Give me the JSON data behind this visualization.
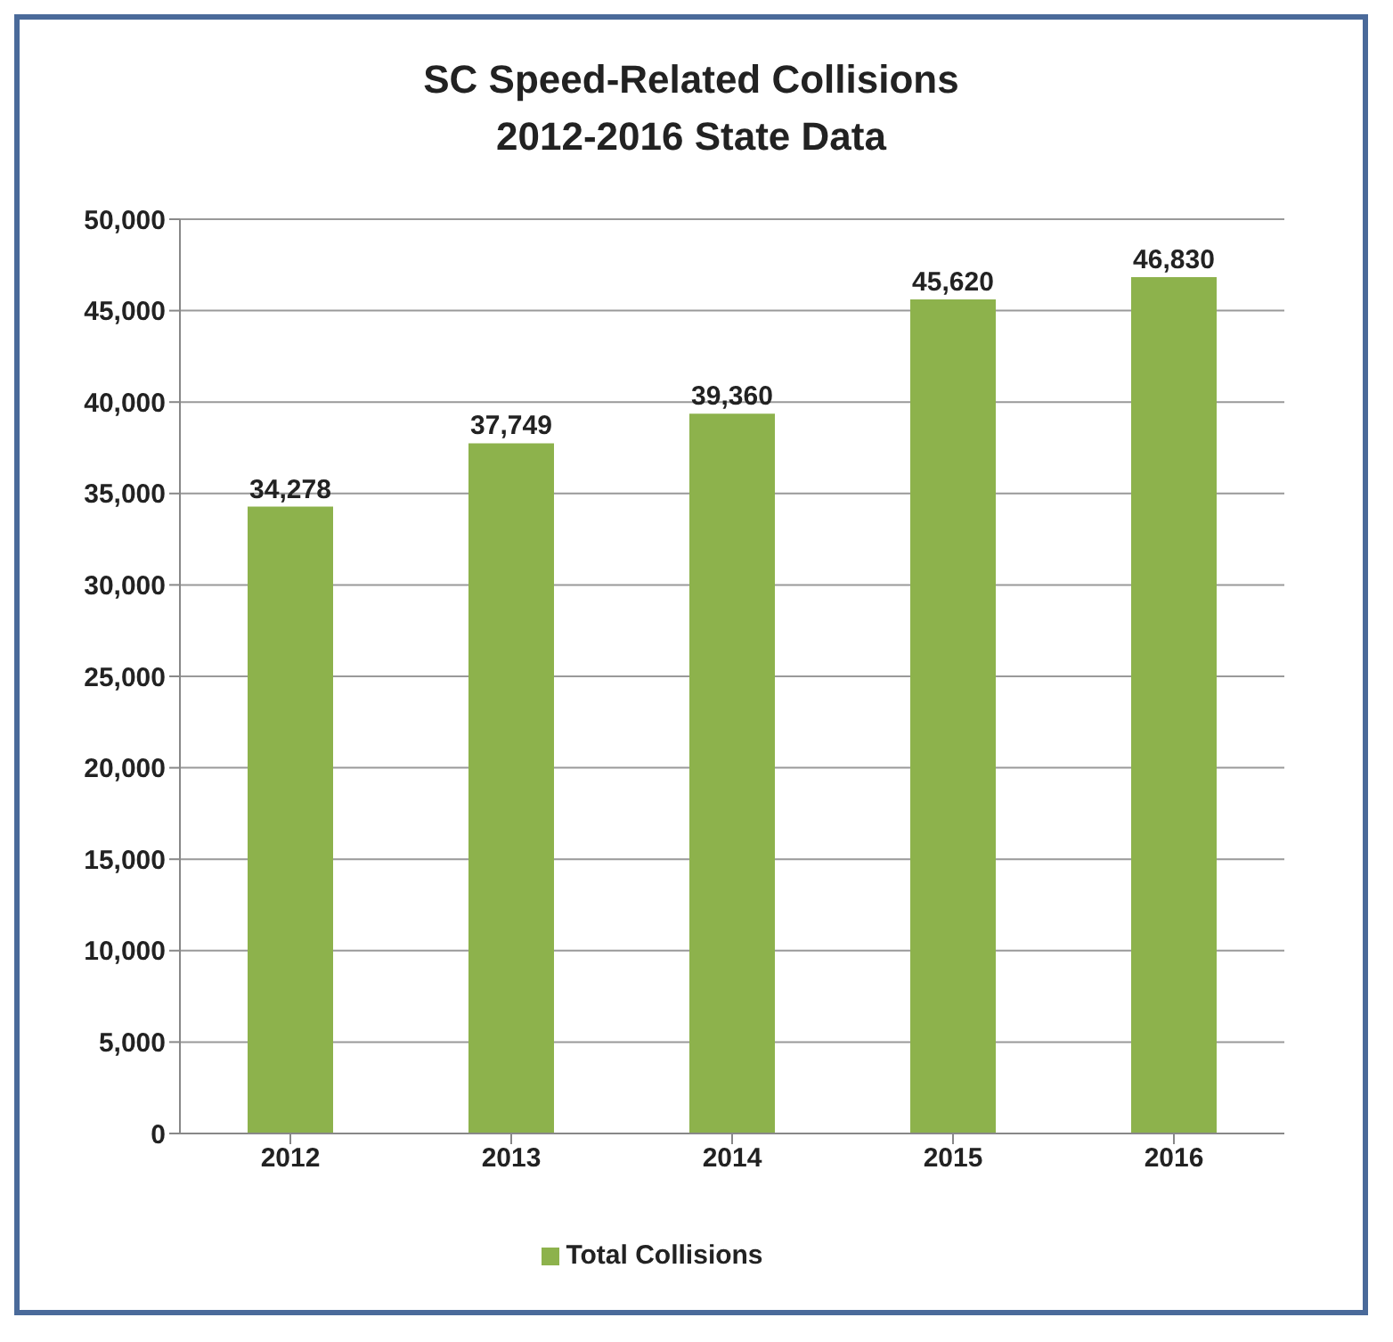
{
  "chart_data": {
    "type": "bar",
    "title": "SC Speed-Related Collisions",
    "subtitle": "2012-2016 State Data",
    "categories": [
      "2012",
      "2013",
      "2014",
      "2015",
      "2016"
    ],
    "series": [
      {
        "name": "Total Collisions",
        "color": "#8db24c",
        "values": [
          34278,
          37749,
          39360,
          45620,
          46830
        ],
        "value_labels": [
          "34,278",
          "37,749",
          "39,360",
          "45,620",
          "46,830"
        ]
      }
    ],
    "ylim": [
      0,
      50000
    ],
    "yticks": [
      0,
      {
        "value": 5000,
        "label": "5,000"
      },
      {
        "value": 10000,
        "label": "10,000"
      },
      {
        "value": 15000,
        "label": "15,000"
      },
      {
        "value": 20000,
        "label": "20,000"
      },
      {
        "value": 25000,
        "label": "25,000"
      },
      {
        "value": 30000,
        "label": "30,000"
      },
      {
        "value": 35000,
        "label": "35,000"
      },
      {
        "value": 40000,
        "label": "40,000"
      },
      {
        "value": 45000,
        "label": "45,000"
      },
      {
        "value": 50000,
        "label": "50,000"
      }
    ],
    "grid": "y",
    "legend": "bottom"
  }
}
